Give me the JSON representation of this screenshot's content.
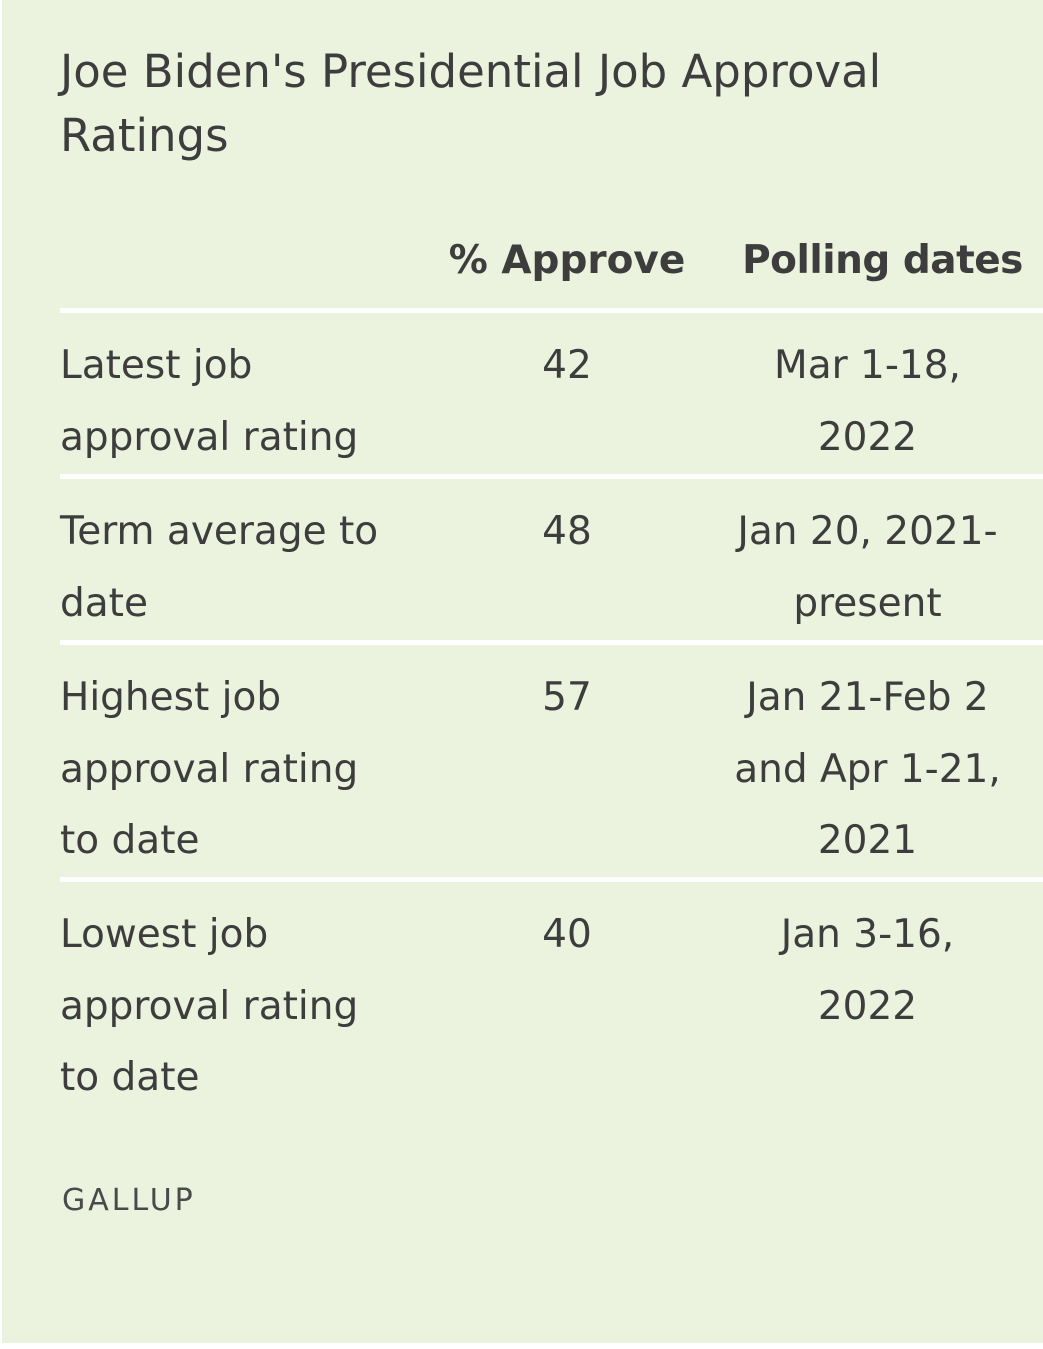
{
  "colors": {
    "background": "#ebf2de",
    "text": "#3d3d3d",
    "divider": "#ffffff"
  },
  "chart_data": {
    "type": "table",
    "title": "Joe Biden's Presidential Job Approval\nRatings",
    "columns": [
      "",
      "% Approve",
      "Polling dates"
    ],
    "rows": [
      {
        "label": "Latest job\napproval rating",
        "approve": 42,
        "dates": "Mar 1-18,\n2022"
      },
      {
        "label": "Term average to\ndate",
        "approve": 48,
        "dates": "Jan 20, 2021-\npresent"
      },
      {
        "label": "Highest job\napproval rating\nto date",
        "approve": 57,
        "dates": "Jan 21-Feb 2\nand Apr 1-21,\n2021"
      },
      {
        "label": "Lowest job\napproval rating\nto date",
        "approve": 40,
        "dates": "Jan 3-16,\n2022"
      }
    ],
    "source": "GALLUP"
  }
}
